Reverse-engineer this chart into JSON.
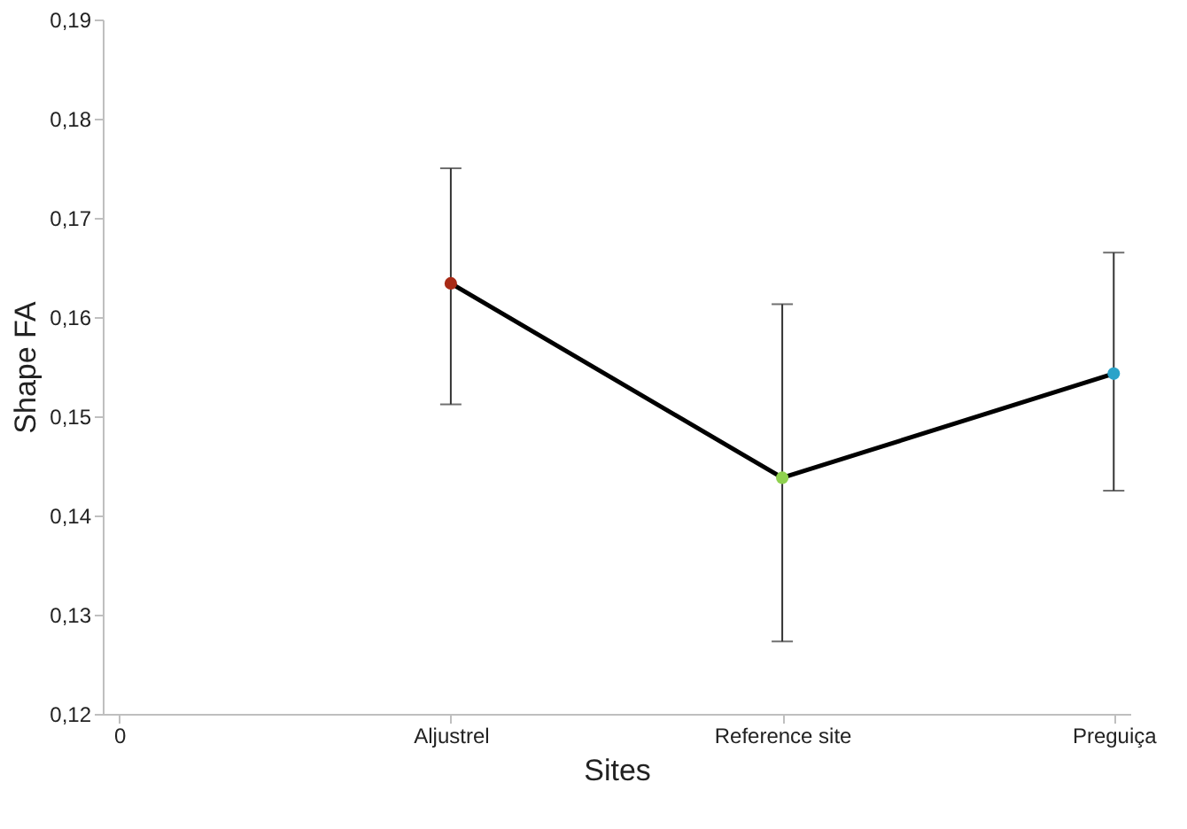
{
  "chart_data": {
    "type": "line",
    "xlabel": "Sites",
    "ylabel": "Shape FA",
    "categories": [
      "0",
      "Aljustrel",
      "Reference site",
      "Preguiça"
    ],
    "series": [
      {
        "color": "#000000",
        "colors": [
          null,
          "#a82a16",
          "#8fd14f",
          "#2ba3c9"
        ],
        "values": [
          null,
          0.1634,
          0.1438,
          0.1543
        ],
        "errors": [
          null,
          [
            0.1512,
            0.175
          ],
          [
            0.1273,
            0.1613
          ],
          [
            0.1425,
            0.1665
          ]
        ]
      }
    ],
    "ylim": [
      0.12,
      0.19
    ],
    "yticks": [
      {
        "value": 0.12,
        "label": "0,12"
      },
      {
        "value": 0.13,
        "label": "0,13"
      },
      {
        "value": 0.14,
        "label": "0,14"
      },
      {
        "value": 0.15,
        "label": "0,15"
      },
      {
        "value": 0.16,
        "label": "0,16"
      },
      {
        "value": 0.17,
        "label": "0,17"
      },
      {
        "value": 0.18,
        "label": "0,18"
      },
      {
        "value": 0.19,
        "label": "0,19"
      }
    ],
    "grid": false,
    "marker": "circle",
    "line_style": "solid"
  }
}
